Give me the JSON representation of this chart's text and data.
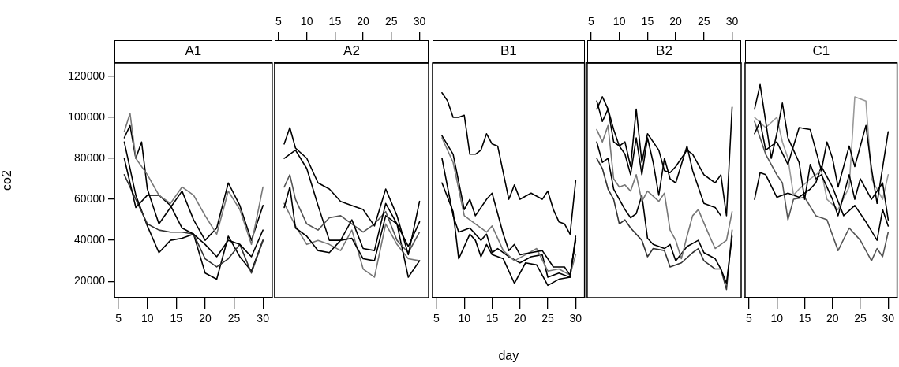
{
  "chart_data": [
    {
      "type": "line",
      "title": "A1",
      "ylabel": "co2",
      "xlim": [
        4.3,
        31.6
      ],
      "xticks": [
        5,
        10,
        15,
        20,
        25,
        30
      ],
      "ylim": [
        12000,
        126500
      ],
      "yticks": [
        20000,
        40000,
        60000,
        80000,
        100000,
        120000
      ],
      "marker": "none",
      "series": [
        {
          "color": "#777777",
          "x": [
            6,
            7,
            8,
            10,
            12,
            14,
            16,
            18,
            20,
            22,
            24,
            26,
            28,
            30
          ],
          "values": [
            93000,
            102000,
            80000,
            72000,
            62000,
            58000,
            66000,
            62000,
            52000,
            43000,
            64000,
            55000,
            38000,
            66000
          ]
        },
        {
          "color": "#000000",
          "x": [
            6,
            7,
            8,
            9,
            10,
            12,
            14,
            16,
            18,
            20,
            22,
            24,
            26,
            28,
            30
          ],
          "values": [
            90000,
            96000,
            80000,
            88000,
            65000,
            48000,
            56000,
            64000,
            50000,
            40000,
            46000,
            68000,
            57000,
            40000,
            57000
          ]
        },
        {
          "color": "#000000",
          "x": [
            6,
            8,
            10,
            12,
            14,
            16,
            18,
            20,
            22,
            24,
            26,
            28,
            30
          ],
          "values": [
            80000,
            56000,
            62000,
            62000,
            57000,
            46000,
            43000,
            38000,
            32000,
            40000,
            38000,
            32000,
            45000
          ]
        },
        {
          "color": "#333333",
          "x": [
            6,
            8,
            10,
            12,
            14,
            16,
            18,
            20,
            22,
            24,
            26,
            28,
            30
          ],
          "values": [
            72000,
            60000,
            48000,
            45000,
            44000,
            44000,
            43000,
            31000,
            27000,
            31000,
            38000,
            24000,
            40000
          ]
        },
        {
          "color": "#000000",
          "x": [
            6,
            8,
            10,
            12,
            14,
            16,
            18,
            20,
            22,
            24,
            26,
            28,
            30
          ],
          "values": [
            88000,
            62000,
            47000,
            34000,
            40000,
            41000,
            43000,
            24000,
            21000,
            42000,
            32000,
            25000,
            40000
          ]
        }
      ]
    },
    {
      "type": "line",
      "title": "A2",
      "xlim": [
        4.3,
        31.6
      ],
      "xticks": [
        5,
        10,
        15,
        20,
        25,
        30
      ],
      "ylim": [
        12000,
        126500
      ],
      "tick_labels": "x",
      "marker": "none",
      "series": [
        {
          "color": "#000000",
          "x": [
            6,
            7,
            8,
            10,
            12,
            14,
            16,
            18,
            20,
            22,
            24,
            26,
            28,
            30
          ],
          "values": [
            87000,
            95000,
            85000,
            80000,
            68000,
            65000,
            59000,
            57000,
            55000,
            47000,
            65000,
            52000,
            33000,
            59000
          ]
        },
        {
          "color": "#000000",
          "x": [
            6,
            8,
            10,
            12,
            14,
            16,
            18,
            20,
            22,
            24,
            26,
            28,
            30
          ],
          "values": [
            80000,
            84000,
            75000,
            57000,
            40000,
            40000,
            50000,
            36000,
            35000,
            58000,
            48000,
            37000,
            49000
          ]
        },
        {
          "color": "#555555",
          "x": [
            6,
            7,
            8,
            10,
            12,
            14,
            16,
            18,
            20,
            22,
            24,
            26,
            28,
            30
          ],
          "values": [
            66000,
            72000,
            60000,
            48000,
            45000,
            51000,
            52000,
            48000,
            44000,
            48000,
            54000,
            40000,
            34000,
            44000
          ]
        },
        {
          "color": "#000000",
          "x": [
            6,
            7,
            8,
            10,
            12,
            14,
            16,
            18,
            20,
            22,
            24,
            26,
            28,
            30
          ],
          "values": [
            56000,
            66000,
            46000,
            42000,
            35000,
            34000,
            40000,
            41000,
            31000,
            30000,
            52000,
            48000,
            22000,
            30000
          ]
        },
        {
          "color": "#777777",
          "x": [
            6,
            8,
            10,
            12,
            14,
            16,
            18,
            20,
            22,
            24,
            26,
            28,
            30
          ],
          "values": [
            58000,
            47000,
            38000,
            40000,
            38000,
            35000,
            45000,
            26000,
            22000,
            48000,
            38000,
            31000,
            30000
          ]
        }
      ]
    },
    {
      "type": "line",
      "title": "B1",
      "xlabel": "day",
      "xlim": [
        4.3,
        31.6
      ],
      "xticks": [
        5,
        10,
        15,
        20,
        25,
        30
      ],
      "ylim": [
        12000,
        126500
      ],
      "tick_labels": "x",
      "marker": "none",
      "series": [
        {
          "color": "#000000",
          "x": [
            6,
            7,
            8,
            9,
            10,
            11,
            12,
            13,
            14,
            15,
            16,
            18,
            19,
            20,
            22,
            24,
            25,
            26,
            27,
            28,
            29,
            30
          ],
          "values": [
            112000,
            108000,
            100000,
            100000,
            101000,
            82000,
            82000,
            84000,
            92000,
            87000,
            86000,
            60000,
            67000,
            60000,
            63000,
            60000,
            64000,
            55000,
            49000,
            48000,
            43000,
            69000
          ]
        },
        {
          "color": "#000000",
          "x": [
            6,
            8,
            10,
            11,
            12,
            14,
            15,
            17,
            18,
            19,
            20,
            22,
            24,
            26,
            28,
            29,
            30
          ],
          "values": [
            91000,
            82000,
            55000,
            60000,
            52000,
            60000,
            63000,
            43000,
            35000,
            38000,
            33000,
            34000,
            35000,
            27000,
            27000,
            23000,
            40000
          ]
        },
        {
          "color": "#777777",
          "x": [
            6,
            8,
            10,
            12,
            14,
            15,
            17,
            19,
            21,
            23,
            25,
            27,
            29,
            30
          ],
          "values": [
            90000,
            78000,
            52000,
            48000,
            44000,
            47000,
            35000,
            30000,
            33000,
            36000,
            25000,
            26000,
            23000,
            33000
          ]
        },
        {
          "color": "#000000",
          "x": [
            6,
            8,
            9,
            11,
            13,
            14,
            15,
            16,
            18,
            20,
            22,
            24,
            25,
            27,
            29,
            30
          ],
          "values": [
            80000,
            52000,
            44000,
            46000,
            40000,
            43000,
            34000,
            36000,
            32000,
            29000,
            32000,
            33000,
            22000,
            24000,
            22000,
            42000
          ]
        },
        {
          "color": "#000000",
          "x": [
            6,
            8,
            9,
            11,
            12,
            13,
            14,
            15,
            17,
            19,
            21,
            23,
            25,
            27,
            29,
            30
          ],
          "values": [
            68000,
            54000,
            31000,
            43000,
            40000,
            32000,
            38000,
            33000,
            31000,
            19000,
            29000,
            28000,
            18000,
            21000,
            22000,
            41000
          ]
        }
      ]
    },
    {
      "type": "line",
      "title": "B2",
      "xlim": [
        4.3,
        31.6
      ],
      "xticks": [
        5,
        10,
        15,
        20,
        25,
        30
      ],
      "ylim": [
        12000,
        126500
      ],
      "tick_labels": "x",
      "marker": "none",
      "series": [
        {
          "color": "#000000",
          "x": [
            6,
            7,
            8,
            9,
            10,
            11,
            12,
            13,
            14,
            15,
            17,
            18,
            19,
            20,
            22,
            23,
            25,
            27,
            28,
            29,
            30
          ],
          "values": [
            104000,
            110000,
            104000,
            94000,
            86000,
            88000,
            76000,
            104000,
            78000,
            92000,
            84000,
            74000,
            73000,
            76000,
            84000,
            82000,
            72000,
            68000,
            72000,
            52000,
            105000
          ]
        },
        {
          "color": "#000000",
          "x": [
            6,
            7,
            8,
            9,
            10,
            11,
            12,
            13,
            14,
            15,
            16,
            17,
            18,
            19,
            20,
            22,
            23,
            25,
            27,
            28
          ],
          "values": [
            108000,
            98000,
            104000,
            88000,
            86000,
            82000,
            72000,
            90000,
            72000,
            90000,
            78000,
            62000,
            80000,
            70000,
            68000,
            86000,
            74000,
            58000,
            56000,
            52000
          ]
        },
        {
          "color": "#777777",
          "x": [
            6,
            7,
            8,
            9,
            10,
            11,
            12,
            13,
            14,
            15,
            17,
            18,
            19,
            20,
            21,
            22,
            23,
            24,
            26,
            27,
            28,
            29,
            30
          ],
          "values": [
            94000,
            88000,
            96000,
            70000,
            66000,
            67000,
            64000,
            72000,
            59000,
            64000,
            59000,
            63000,
            45000,
            40000,
            31000,
            42000,
            52000,
            55000,
            42000,
            36000,
            38000,
            40000,
            54000
          ]
        },
        {
          "color": "#000000",
          "x": [
            6,
            7,
            8,
            9,
            10,
            11,
            12,
            13,
            14,
            15,
            16,
            18,
            19,
            20,
            22,
            24,
            25,
            27,
            28,
            29,
            30
          ],
          "values": [
            88000,
            78000,
            80000,
            65000,
            60000,
            55000,
            51000,
            53000,
            62000,
            41000,
            38000,
            36000,
            38000,
            30000,
            37000,
            40000,
            34000,
            31000,
            26000,
            19000,
            42000
          ]
        },
        {
          "color": "#333333",
          "x": [
            6,
            7,
            8,
            9,
            10,
            11,
            12,
            14,
            15,
            16,
            18,
            19,
            21,
            23,
            24,
            25,
            27,
            28,
            29,
            30
          ],
          "values": [
            80000,
            75000,
            65000,
            60000,
            48000,
            50000,
            46000,
            40000,
            32000,
            36000,
            35000,
            27000,
            29000,
            34000,
            36000,
            30000,
            26000,
            26000,
            16000,
            45000
          ]
        }
      ]
    },
    {
      "type": "line",
      "title": "C1",
      "xlim": [
        4.3,
        31.6
      ],
      "xticks": [
        5,
        10,
        15,
        20,
        25,
        30
      ],
      "ylim": [
        12000,
        126500
      ],
      "tick_labels": "x",
      "marker": "none",
      "series": [
        {
          "color": "#000000",
          "x": [
            6,
            7,
            8,
            10,
            12,
            14,
            16,
            18,
            19,
            20,
            21,
            23,
            24,
            26,
            27,
            28,
            30
          ],
          "values": [
            92000,
            98000,
            84000,
            88000,
            77000,
            95000,
            94000,
            74000,
            88000,
            80000,
            66000,
            86000,
            76000,
            96000,
            75000,
            58000,
            93000
          ]
        },
        {
          "color": "#000000",
          "x": [
            6,
            7,
            8,
            9,
            10,
            11,
            12,
            13,
            14,
            15,
            16,
            17,
            18,
            20,
            21,
            23,
            24,
            25,
            27,
            29,
            30
          ],
          "values": [
            104000,
            116000,
            98000,
            80000,
            92000,
            107000,
            90000,
            84000,
            78000,
            60000,
            77000,
            70000,
            72000,
            60000,
            52000,
            72000,
            60000,
            70000,
            60000,
            68000,
            50000
          ]
        },
        {
          "color": "#999999",
          "x": [
            6,
            8,
            10,
            11,
            12,
            13,
            14,
            16,
            18,
            19,
            21,
            23,
            24,
            26,
            27,
            29,
            30
          ],
          "values": [
            100000,
            95000,
            100000,
            88000,
            80000,
            62000,
            65000,
            70000,
            74000,
            60000,
            55000,
            66000,
            110000,
            108000,
            70000,
            60000,
            72000
          ]
        },
        {
          "color": "#000000",
          "x": [
            6,
            7,
            8,
            10,
            12,
            14,
            16,
            17,
            18,
            20,
            22,
            24,
            26,
            28,
            29,
            30
          ],
          "values": [
            60000,
            73000,
            72000,
            61000,
            63000,
            61000,
            65000,
            68000,
            76000,
            66000,
            52000,
            57000,
            49000,
            40000,
            55000,
            47000
          ]
        },
        {
          "color": "#555555",
          "x": [
            6,
            8,
            10,
            11,
            12,
            13,
            15,
            17,
            19,
            21,
            23,
            25,
            27,
            28,
            29,
            30
          ],
          "values": [
            98000,
            82000,
            72000,
            68000,
            50000,
            60000,
            61000,
            52000,
            50000,
            35000,
            46000,
            40000,
            30000,
            36000,
            32000,
            44000
          ]
        }
      ]
    }
  ]
}
